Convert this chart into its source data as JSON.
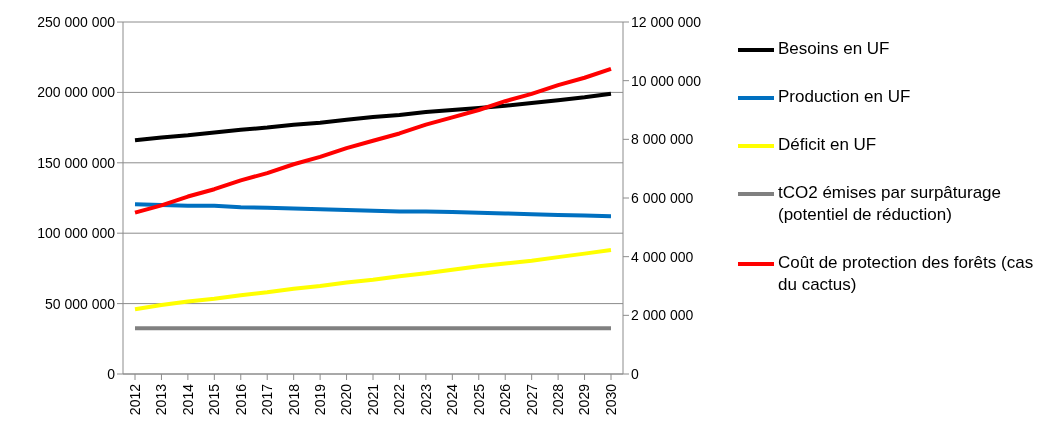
{
  "chart_data": {
    "type": "line",
    "categories": [
      "2012",
      "2013",
      "2014",
      "2015",
      "2016",
      "2017",
      "2018",
      "2019",
      "2020",
      "2021",
      "2022",
      "2023",
      "2024",
      "2025",
      "2026",
      "2027",
      "2028",
      "2029",
      "2030"
    ],
    "series": [
      {
        "name": "Besoins en UF",
        "color": "#000000",
        "values": [
          166000000,
          168000000,
          169500000,
          171500000,
          173500000,
          175000000,
          177000000,
          178500000,
          180500000,
          182500000,
          184000000,
          186000000,
          187500000,
          189000000,
          190500000,
          192500000,
          194500000,
          196500000,
          199000000
        ]
      },
      {
        "name": "Production en UF",
        "color": "#0070c0",
        "values": [
          120500000,
          120000000,
          119500000,
          119500000,
          118500000,
          118000000,
          117500000,
          117000000,
          116500000,
          116000000,
          115500000,
          115500000,
          115000000,
          114500000,
          114000000,
          113500000,
          113000000,
          112500000,
          112000000
        ]
      },
      {
        "name": "Déficit en UF",
        "color": "#ffff00",
        "values": [
          46000000,
          49000000,
          51500000,
          53500000,
          56000000,
          58000000,
          60500000,
          62500000,
          65000000,
          67000000,
          69500000,
          71500000,
          74000000,
          76500000,
          78500000,
          80500000,
          83000000,
          85500000,
          88000000
        ]
      },
      {
        "name": "tCO2 émises par surpâturage (potentiel de réduction)",
        "color": "#808080",
        "values": [
          32500000,
          32500000,
          32500000,
          32500000,
          32500000,
          32500000,
          32500000,
          32500000,
          32500000,
          32500000,
          32500000,
          32500000,
          32500000,
          32500000,
          32500000,
          32500000,
          32500000,
          32500000,
          32500000
        ]
      },
      {
        "name": "Coût de protection des forêts (cas du cactus)",
        "color": "#ff0000",
        "axis": "y2",
        "values": [
          5500000,
          5750000,
          6050000,
          6300000,
          6600000,
          6850000,
          7150000,
          7400000,
          7700000,
          7950000,
          8200000,
          8500000,
          8750000,
          9000000,
          9300000,
          9550000,
          9850000,
          10100000,
          10400000
        ]
      }
    ],
    "ylim": [
      0,
      250000000
    ],
    "yticks": [
      0,
      50000000,
      100000000,
      150000000,
      200000000,
      250000000
    ],
    "y2lim": [
      0,
      12000000
    ],
    "y2ticks": [
      0,
      2000000,
      4000000,
      6000000,
      8000000,
      10000000,
      12000000
    ],
    "grid": "y",
    "legend": "right",
    "marker": "none",
    "line_style": "solid"
  }
}
